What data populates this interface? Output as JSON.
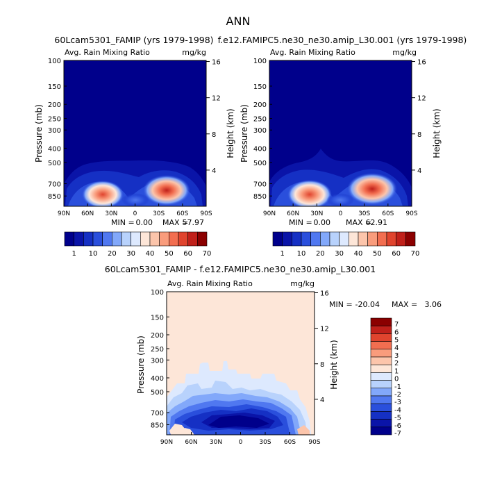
{
  "figure_title": "ANN",
  "panels": {
    "left": {
      "title": "60Lcam5301_FAMIP (yrs 1979-1998)",
      "subtitle_left": "Avg. Rain Mixing Ratio",
      "subtitle_right": "mg/kg",
      "min_label": "MIN =",
      "min_value": "0.00",
      "max_label": "MAX =",
      "max_value": "57.97"
    },
    "right": {
      "title": "f.e12.FAMIPC5.ne30_ne30.amip_L30.001 (yrs 1979-1998)",
      "subtitle_left": "Avg. Rain Mixing Ratio",
      "subtitle_right": "mg/kg",
      "min_label": "MIN =",
      "min_value": "0.00",
      "max_label": "MAX =",
      "max_value": "62.91"
    },
    "diff": {
      "title": "60Lcam5301_FAMIP - f.e12.FAMIPC5.ne30_ne30.amip_L30.001",
      "subtitle_left": "Avg. Rain Mixing Ratio",
      "subtitle_right": "mg/kg",
      "min_label": "MIN =",
      "min_value": "-20.04",
      "max_label": "MAX =",
      "max_value": "3.06"
    }
  },
  "colors": {
    "abs_colorbar": [
      "#00008b",
      "#0a14a8",
      "#1530c4",
      "#2a4fdc",
      "#5078f0",
      "#82a8fa",
      "#b8d2fc",
      "#dde9fe",
      "#fde6d8",
      "#fcc5ab",
      "#f99c7c",
      "#f26e50",
      "#e0442e",
      "#c0201a",
      "#8b0000"
    ],
    "diff_colorbar": [
      "#00008b",
      "#0a14a8",
      "#1530c4",
      "#2a4fdc",
      "#5078f0",
      "#82a8fa",
      "#b8d2fc",
      "#dde9fe",
      "#fde6d8",
      "#fcc5ab",
      "#f99c7c",
      "#f26e50",
      "#e0442e",
      "#c0201a",
      "#8b0000"
    ]
  },
  "chart_data": [
    {
      "type": "heatmap",
      "panel": "left",
      "title": "60Lcam5301_FAMIP (yrs 1979-1998)",
      "variable": "Avg. Rain Mixing Ratio",
      "units": "mg/kg",
      "xlabel": "",
      "ylabel": "Pressure (mb)",
      "y2label": "Height (km)",
      "x_ticks": [
        "90N",
        "60N",
        "30N",
        "0",
        "30S",
        "60S",
        "90S"
      ],
      "y_ticks": [
        100,
        150,
        200,
        250,
        300,
        400,
        500,
        700,
        850
      ],
      "y2_ticks": [
        4,
        8,
        12,
        16
      ],
      "ylim": [
        100,
        1000
      ],
      "min": 0.0,
      "max": 57.97,
      "features": [
        {
          "lat": 37,
          "p": 760,
          "value": 45
        },
        {
          "lat": -34,
          "p": 720,
          "value": 55
        }
      ]
    },
    {
      "type": "heatmap",
      "panel": "right",
      "title": "f.e12.FAMIPC5.ne30_ne30.amip_L30.001 (yrs 1979-1998)",
      "variable": "Avg. Rain Mixing Ratio",
      "units": "mg/kg",
      "xlabel": "",
      "ylabel": "Pressure (mb)",
      "y2label": "Height (km)",
      "x_ticks": [
        "90N",
        "60N",
        "30N",
        "0",
        "30S",
        "60S",
        "90S"
      ],
      "y_ticks": [
        100,
        150,
        200,
        250,
        300,
        400,
        500,
        700,
        850
      ],
      "y2_ticks": [
        4,
        8,
        12,
        16
      ],
      "ylim": [
        100,
        1000
      ],
      "min": 0.0,
      "max": 62.91,
      "features": [
        {
          "lat": 40,
          "p": 770,
          "value": 50
        },
        {
          "lat": -35,
          "p": 720,
          "value": 60
        }
      ]
    },
    {
      "type": "heatmap",
      "panel": "diff",
      "title": "60Lcam5301_FAMIP - f.e12.FAMIPC5.ne30_ne30.amip_L30.001",
      "variable": "Avg. Rain Mixing Ratio",
      "units": "mg/kg",
      "xlabel": "",
      "ylabel": "Pressure (mb)",
      "y2label": "Height (km)",
      "x_ticks": [
        "90N",
        "60N",
        "30N",
        "0",
        "30S",
        "60S",
        "90S"
      ],
      "y_ticks": [
        100,
        150,
        200,
        250,
        300,
        400,
        500,
        700,
        850
      ],
      "y2_ticks": [
        4,
        8,
        12,
        16
      ],
      "ylim": [
        100,
        1000
      ],
      "min": -20.04,
      "max": 3.06
    },
    {
      "type": "colorbar",
      "for": [
        "left",
        "right"
      ],
      "labels": [
        "1",
        "10",
        "20",
        "30",
        "40",
        "50",
        "60",
        "70"
      ]
    },
    {
      "type": "colorbar",
      "for": [
        "diff"
      ],
      "labels": [
        "7",
        "6",
        "5",
        "4",
        "3",
        "2",
        "1",
        "0",
        "-1",
        "-2",
        "-3",
        "-4",
        "-5",
        "-6",
        "-7"
      ]
    }
  ]
}
